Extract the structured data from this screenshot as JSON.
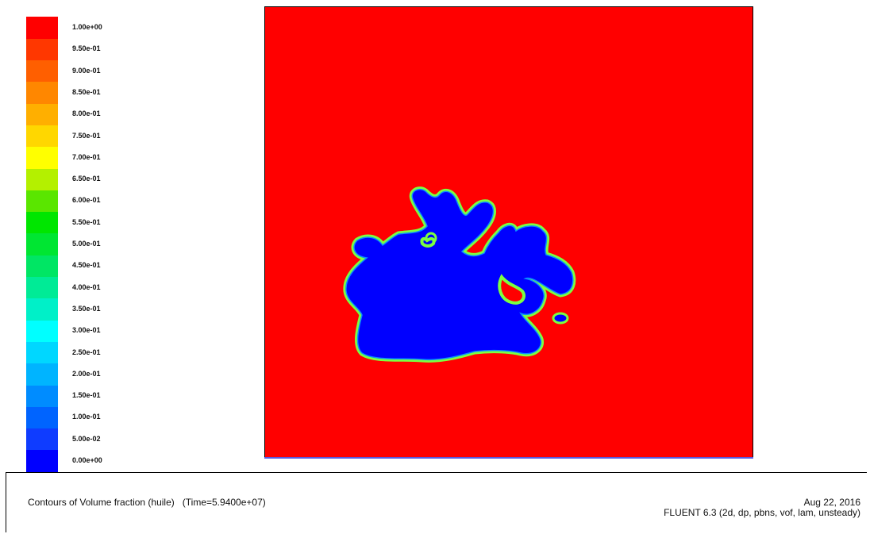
{
  "chart_data": {
    "type": "heatmap",
    "title": "Contours of Volume fraction (huile)",
    "time_label": "(Time=5.9400e+07)",
    "colorbar": {
      "ticks": [
        "0.00e+00",
        "5.00e-02",
        "1.00e-01",
        "1.50e-01",
        "2.00e-01",
        "2.50e-01",
        "3.00e-01",
        "3.50e-01",
        "4.00e-01",
        "4.50e-01",
        "5.00e-01",
        "5.50e-01",
        "6.00e-01",
        "6.50e-01",
        "7.00e-01",
        "7.50e-01",
        "8.00e-01",
        "8.50e-01",
        "9.00e-01",
        "9.50e-01",
        "1.00e+00"
      ],
      "colors": [
        "#0000ff",
        "#0f3cff",
        "#0064ff",
        "#008cff",
        "#00b4ff",
        "#00d7ff",
        "#00ffff",
        "#00f0c8",
        "#00eb96",
        "#00e664",
        "#00e632",
        "#00e600",
        "#5ae600",
        "#b4f000",
        "#ffff00",
        "#ffd700",
        "#ffaf00",
        "#ff8700",
        "#ff5f00",
        "#ff3700",
        "#ff0000"
      ],
      "range": [
        0,
        1
      ]
    },
    "field": {
      "background_value": 1.0,
      "region_value": 0.0,
      "background_color": "#ff0000",
      "region_color": "#0000ff",
      "interface_color": "#7cff40"
    }
  },
  "footer": {
    "date": "Aug 22, 2016",
    "solver": "FLUENT 6.3 (2d, dp, pbns, vof, lam, unsteady)"
  }
}
